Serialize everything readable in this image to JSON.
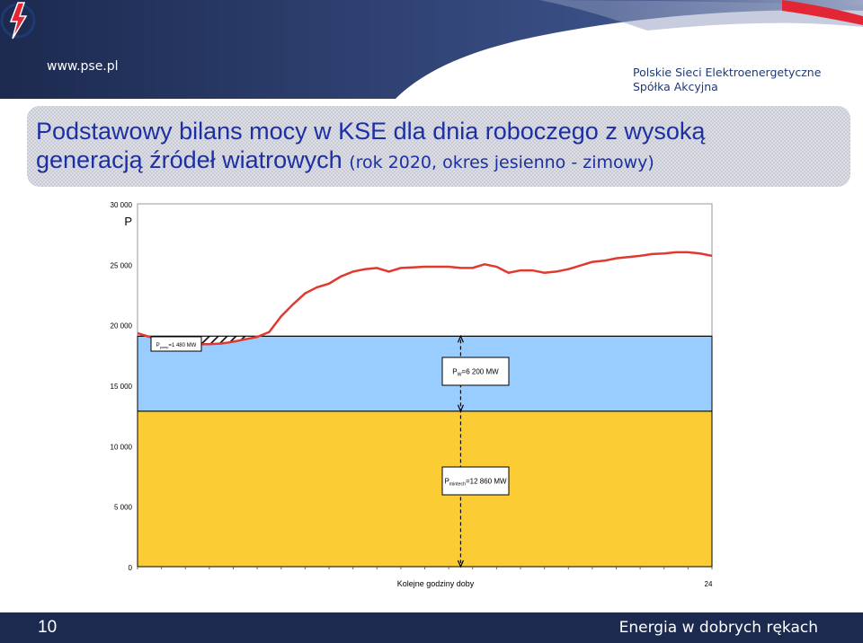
{
  "header": {
    "url": "www.pse.pl",
    "company_line1": "Polskie Sieci Elektroenergetyczne",
    "company_line2": "Spółka Akcyjna",
    "logo": "pse-lightning-logo"
  },
  "title": {
    "line1": "Podstawowy bilans mocy w KSE dla dnia roboczego z wysoką",
    "line2_main": "generacją źródeł wiatrowych",
    "line2_sub": "(rok 2020, okres jesienno - zimowy)"
  },
  "chart_data": {
    "type": "area",
    "ylabel": "P",
    "xlabel": "Kolejne godziny doby",
    "x_end_label": "24",
    "ylim": [
      0,
      30000
    ],
    "yticks": [
      0,
      5000,
      10000,
      15000,
      20000,
      25000,
      30000
    ],
    "ytick_labels": [
      "0",
      "5 000",
      "10 000",
      "15 000",
      "20 000",
      "25 000",
      "30 000"
    ],
    "xlim": [
      0,
      24
    ],
    "grid": false,
    "series": [
      {
        "role": "demand",
        "color": "#e03a2f",
        "x": [
          0,
          0.5,
          1,
          1.5,
          2,
          2.5,
          3,
          3.5,
          4,
          4.5,
          5,
          5.5,
          6,
          6.5,
          7,
          7.5,
          8,
          8.5,
          9,
          9.5,
          10,
          10.5,
          11,
          11.5,
          12,
          12.5,
          13,
          13.5,
          14,
          14.5,
          15,
          15.5,
          16,
          16.5,
          17,
          17.5,
          18,
          18.5,
          19,
          19.5,
          20,
          20.5,
          21,
          21.5,
          22,
          22.5,
          23,
          23.5,
          24
        ],
        "values": [
          19300,
          19000,
          18700,
          18550,
          18450,
          18400,
          18400,
          18450,
          18600,
          18800,
          19000,
          19400,
          20700,
          21700,
          22600,
          23100,
          23400,
          24000,
          24400,
          24600,
          24700,
          24400,
          24700,
          24750,
          24800,
          24800,
          24800,
          24700,
          24700,
          25000,
          24800,
          24300,
          24500,
          24500,
          24300,
          24400,
          24600,
          24900,
          25200,
          25300,
          25500,
          25600,
          25700,
          25850,
          25900,
          26000,
          26000,
          25900,
          25700
        ]
      }
    ],
    "bands": [
      {
        "role": "minimum-technical",
        "from": 0,
        "to": 12860,
        "color": "#fccc34"
      },
      {
        "role": "wind",
        "from": 12860,
        "to": 19060,
        "color": "#99ccff"
      }
    ],
    "annotations": {
      "wind_label": "P",
      "wind_label_sub": "W",
      "wind_label_value": "=6 200 MW",
      "mintech_label": "P",
      "mintech_label_sub": "mintech",
      "mintech_label_value": "=12 860 MW",
      "pump_label": "P",
      "pump_label_sub": "pomp",
      "pump_label_value": "=1 480 MW"
    }
  },
  "footer": {
    "page_number": "10",
    "slogan": "Energia w dobrych rękach",
    "color": "#1c2a4f"
  }
}
